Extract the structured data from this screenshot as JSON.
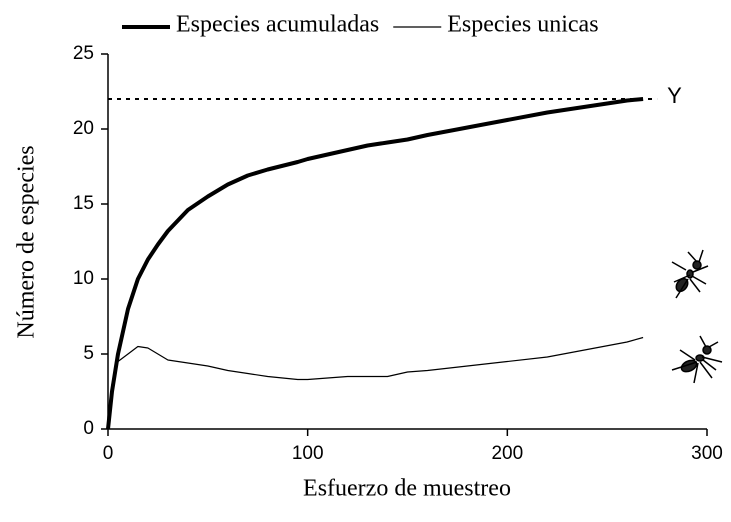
{
  "chart_data": {
    "type": "line",
    "x_label": "Esfuerzo de muestreo",
    "y_label": "Número de especies",
    "x": [
      0,
      2,
      5,
      10,
      15,
      20,
      25,
      30,
      40,
      50,
      60,
      70,
      80,
      95,
      100,
      110,
      120,
      130,
      140,
      150,
      160,
      180,
      200,
      220,
      240,
      260,
      268
    ],
    "series": [
      {
        "name": "Especies acumuladas",
        "color": "#000000",
        "line_width": 4,
        "values": [
          0,
          2.5,
          5,
          8,
          10,
          11.3,
          12.3,
          13.2,
          14.6,
          15.5,
          16.3,
          16.9,
          17.3,
          17.8,
          18,
          18.3,
          18.6,
          18.9,
          19.1,
          19.3,
          19.6,
          20.1,
          20.6,
          21.1,
          21.5,
          21.9,
          22
        ]
      },
      {
        "name": "Especies unicas",
        "color": "#000000",
        "line_width": 1.2,
        "values": [
          0,
          3,
          4.5,
          5,
          5.5,
          5.4,
          5,
          4.6,
          4.4,
          4.2,
          3.9,
          3.7,
          3.5,
          3.3,
          3.3,
          3.4,
          3.5,
          3.5,
          3.5,
          3.8,
          3.9,
          4.2,
          4.5,
          4.8,
          5.3,
          5.8,
          6.1
        ]
      }
    ],
    "hline": {
      "value": 22,
      "x_end": 275,
      "label": "Y",
      "style": "dotted"
    },
    "xlim": [
      0,
      300
    ],
    "xticks": [
      0,
      100,
      200,
      300
    ],
    "ylim": [
      0,
      25
    ],
    "yticks": [
      0,
      5,
      10,
      15,
      20,
      25
    ],
    "grid": false,
    "legend": "top"
  }
}
